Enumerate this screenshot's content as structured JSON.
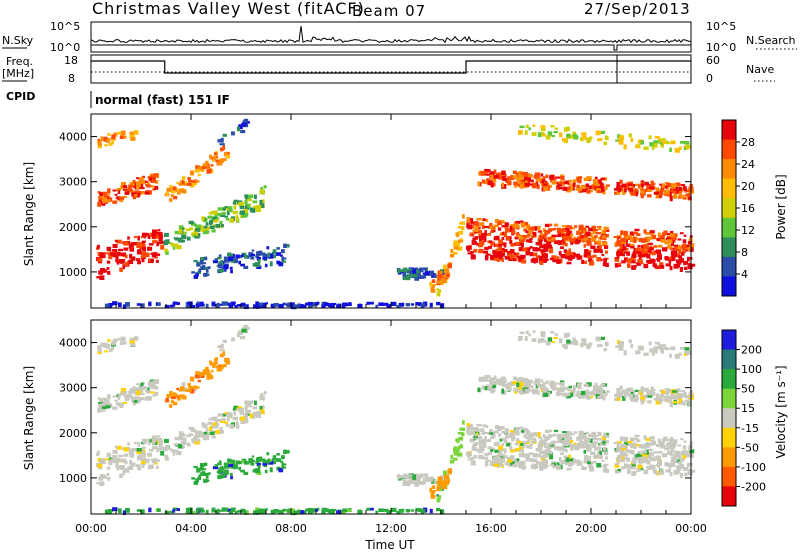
{
  "header": {
    "title": "Christmas Valley West (fitACF)",
    "beam": "Beam 07",
    "date": "27/Sep/2013"
  },
  "nsky_panel": {
    "label": "N.Sky",
    "right_label": "N.Search",
    "yticks_left": [
      "10^5",
      "10^0"
    ],
    "yticks_right": [
      "10^5",
      "10^0"
    ]
  },
  "freq_panel": {
    "label_line1": "Freq.",
    "label_line2": "[MHz]",
    "right_label": "Nave",
    "yticks_left": [
      "18",
      "8"
    ],
    "yticks_right": [
      "60",
      "0"
    ]
  },
  "cpid": {
    "label": "CPID",
    "mode": "normal (fast) 151 IF"
  },
  "chart_data": [
    {
      "type": "heatmap",
      "name": "power",
      "ylabel": "Slant Range [km]",
      "yticks": [
        1000,
        2000,
        3000,
        4000
      ],
      "ylim": [
        200,
        4500
      ],
      "xlim": [
        0,
        24
      ],
      "colorbar_label": "Power [dB]",
      "colorbar_ticks": [
        "28",
        "24",
        "20",
        "16",
        "12",
        "8",
        "4"
      ],
      "colors": [
        "#e8000b",
        "#ff4a00",
        "#ff8c00",
        "#ffbd00",
        "#cfcf00",
        "#5fc63a",
        "#2e8f5a",
        "#2a4ea8",
        "#1010dd"
      ]
    },
    {
      "type": "heatmap",
      "name": "velocity",
      "ylabel": "Slant Range [km]",
      "yticks": [
        1000,
        2000,
        3000,
        4000
      ],
      "ylim": [
        200,
        4500
      ],
      "xlim": [
        0,
        24
      ],
      "xticks": [
        "00:00",
        "04:00",
        "08:00",
        "12:00",
        "16:00",
        "20:00",
        "00:00"
      ],
      "xlabel": "Time UT",
      "colorbar_label": "Velocity [m s⁻¹]",
      "colorbar_ticks": [
        "200",
        "100",
        "50",
        "15",
        "-15",
        "-50",
        "-100",
        "-200"
      ],
      "colors": [
        "#1d1ddb",
        "#2a7a78",
        "#2aaa3a",
        "#7ad43a",
        "#c9c9c0",
        "#ffd200",
        "#ff9a00",
        "#ff5a00",
        "#e8000b"
      ]
    }
  ]
}
